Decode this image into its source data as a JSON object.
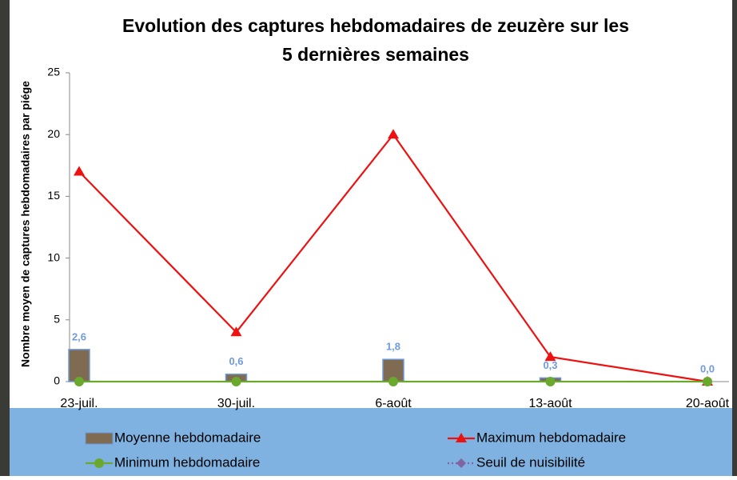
{
  "chart_data": {
    "type": "combo",
    "title": [
      "Evolution des captures hebdomadaires de zeuzère sur les",
      "5 dernières semaines"
    ],
    "y_label": "Nombre moyen de captures hebdomadaires par piége",
    "categories": [
      "23-juil.",
      "30-juil.",
      "6-août",
      "13-août",
      "20-août"
    ],
    "ylim": [
      0,
      25
    ],
    "yticks": [
      0,
      5,
      10,
      15,
      20,
      25
    ],
    "grid": false,
    "series": [
      {
        "name": "Moyenne hebdomadaire",
        "type": "bar",
        "color": "#7f6a52",
        "values": [
          2.6,
          0.6,
          1.8,
          0.3,
          0.0
        ],
        "value_labels": [
          "2,6",
          "0,6",
          "1,8",
          "0,3",
          "0,0"
        ]
      },
      {
        "name": "Maximum hebdomadaire",
        "type": "line",
        "color": "#ee1111",
        "marker": "triangle",
        "values": [
          17,
          4,
          20,
          2,
          0
        ]
      },
      {
        "name": "Minimum hebdomadaire",
        "type": "line",
        "color": "#6aa92e",
        "marker": "circle",
        "values": [
          0,
          0,
          0,
          0,
          0
        ]
      },
      {
        "name": "Seuil de nuisibilité",
        "type": "line",
        "color": "#8064a2",
        "marker": "diamond",
        "dash": "dotted",
        "values": [
          null,
          null,
          null,
          null,
          null
        ]
      }
    ]
  }
}
